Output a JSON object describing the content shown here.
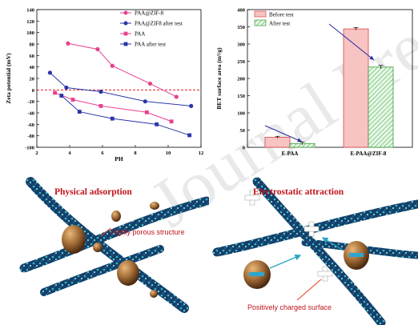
{
  "watermark": "Journal Pre-proofs",
  "colors": {
    "pink": "#e8408e",
    "blue": "#2a35a8",
    "red": "#e81c1c",
    "bar_pink": "#f7c3c3",
    "bar_green_hatch": "#8fd08f",
    "arrow": "#2c2fa0",
    "fiber": "#14406a",
    "fiber_speck": "#3fb8c8",
    "particle": "#a06a35"
  },
  "chart_data": [
    {
      "type": "line",
      "xlabel": "PH",
      "ylabel": "Zeta potential (mV)",
      "xlim": [
        2,
        12
      ],
      "ylim": [
        -100,
        140
      ],
      "xticks": [
        2,
        4,
        6,
        8,
        10,
        12
      ],
      "yticks": [
        -100,
        -80,
        -60,
        -40,
        -20,
        0,
        20,
        40,
        60,
        80,
        100,
        120,
        140
      ],
      "zero_line": true,
      "legend_position": "top-right",
      "series": [
        {
          "name": "PAA@ZIF-8",
          "marker": "circle",
          "color": "#e8408e",
          "x": [
            3.9,
            5.7,
            6.6,
            8.9,
            10.5
          ],
          "y": [
            81,
            71,
            42,
            11,
            -12
          ]
        },
        {
          "name": "PAA@ZIF8 after test",
          "marker": "circle",
          "color": "#2a35a8",
          "x": [
            2.8,
            3.8,
            5.9,
            8.6,
            11.4
          ],
          "y": [
            30,
            4,
            -3,
            -20,
            -28
          ]
        },
        {
          "name": "PAA",
          "marker": "square",
          "color": "#e8408e",
          "x": [
            3.1,
            4.2,
            5.9,
            8.7,
            10.2
          ],
          "y": [
            -5,
            -17,
            -28,
            -39,
            -55
          ]
        },
        {
          "name": "PAA after test",
          "marker": "square",
          "color": "#2a35a8",
          "x": [
            3.5,
            4.6,
            6.6,
            9.3,
            11.3
          ],
          "y": [
            -10,
            -38,
            -50,
            -60,
            -79
          ]
        }
      ]
    },
    {
      "type": "bar",
      "ylabel": "BET surface area (m²/g)",
      "ylim": [
        0,
        400
      ],
      "yticks": [
        0,
        50,
        100,
        150,
        200,
        250,
        300,
        350,
        400
      ],
      "categories": [
        "E-PAA",
        "E-PAA@ZIF-8"
      ],
      "legend_position": "top-left",
      "series": [
        {
          "name": "Before test",
          "values": [
            29,
            344
          ],
          "errors": [
            3,
            4
          ],
          "color": "#f7c3c3"
        },
        {
          "name": "After test",
          "values": [
            11,
            233
          ],
          "errors": [
            4,
            5
          ],
          "color": "#8fd08f"
        }
      ]
    }
  ],
  "illustration_left": {
    "title": "Physical adsorption",
    "label": "Highly porous structure"
  },
  "illustration_right": {
    "title": "Electrostatic attraction",
    "label": "Positively charged surface"
  }
}
